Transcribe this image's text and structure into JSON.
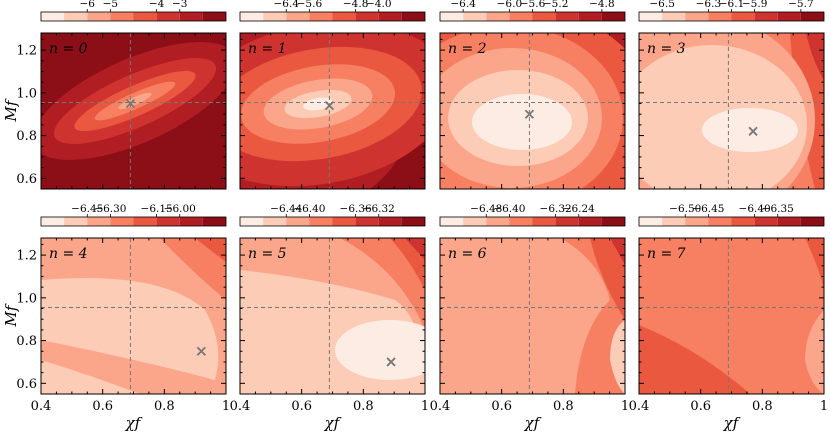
{
  "figure": {
    "xlabel": "χf",
    "ylabel": "Mf"
  },
  "chart_data": [
    {
      "type": "heatmap",
      "label": "n = 0",
      "xlim": [
        0.4,
        1.0
      ],
      "ylim": [
        0.55,
        1.28
      ],
      "xticks": [
        "0.4",
        "0.6",
        "0.8",
        "1"
      ],
      "yticks": [
        "0.6",
        "0.8",
        "1.0",
        "1.2"
      ],
      "crosshair": [
        0.69,
        0.955
      ],
      "marker": [
        0.69,
        0.95
      ],
      "colorbar_ticks": [
        "−6",
        "−5",
        "−4",
        "−3"
      ],
      "colorbar_colors": [
        "#fdece4",
        "#fcccb6",
        "#fba68a",
        "#f77f62",
        "#ea5840",
        "#cf3330",
        "#b01d22",
        "#8c0e17"
      ]
    },
    {
      "type": "heatmap",
      "label": "n = 1",
      "xlim": [
        0.4,
        1.0
      ],
      "ylim": [
        0.55,
        1.28
      ],
      "crosshair": [
        0.69,
        0.955
      ],
      "marker": [
        0.69,
        0.94
      ],
      "colorbar_ticks": [
        "−6.4",
        "−5.6",
        "−4.8",
        "−4.0"
      ],
      "colorbar_colors": [
        "#fdece4",
        "#fcccb6",
        "#fba68a",
        "#f77f62",
        "#ea5840",
        "#cf3330",
        "#b01d22",
        "#8c0e17"
      ]
    },
    {
      "type": "heatmap",
      "label": "n = 2",
      "xlim": [
        0.4,
        1.0
      ],
      "ylim": [
        0.55,
        1.28
      ],
      "crosshair": [
        0.69,
        0.955
      ],
      "marker": [
        0.69,
        0.9
      ],
      "colorbar_ticks": [
        "−6.4",
        "−6.0",
        "−5.6",
        "−5.2",
        "−4.8"
      ],
      "colorbar_colors": [
        "#fdece4",
        "#fcccb6",
        "#fba68a",
        "#f77f62",
        "#ea5840",
        "#cf3330",
        "#b01d22",
        "#8c0e17"
      ]
    },
    {
      "type": "heatmap",
      "label": "n = 3",
      "xlim": [
        0.4,
        1.0
      ],
      "ylim": [
        0.55,
        1.28
      ],
      "crosshair": [
        0.69,
        0.955
      ],
      "marker": [
        0.77,
        0.82
      ],
      "colorbar_ticks": [
        "−6.5",
        "−6.3",
        "−6.1",
        "−5.9",
        "−5.7"
      ],
      "colorbar_colors": [
        "#fdece4",
        "#fcccb6",
        "#fba68a",
        "#f77f62",
        "#ea5840",
        "#cf3330",
        "#b01d22",
        "#8c0e17"
      ]
    },
    {
      "type": "heatmap",
      "label": "n = 4",
      "xlim": [
        0.4,
        1.0
      ],
      "ylim": [
        0.55,
        1.28
      ],
      "crosshair": [
        0.69,
        0.955
      ],
      "marker": [
        0.92,
        0.75
      ],
      "colorbar_ticks": [
        "−6.45",
        "−6.30",
        "−6.15",
        "−6.00"
      ],
      "colorbar_colors": [
        "#fdece4",
        "#fcccb6",
        "#fba68a",
        "#f77f62",
        "#ea5840",
        "#cf3330",
        "#b01d22",
        "#8c0e17"
      ]
    },
    {
      "type": "heatmap",
      "label": "n = 5",
      "xlim": [
        0.4,
        1.0
      ],
      "ylim": [
        0.55,
        1.28
      ],
      "crosshair": [
        0.69,
        0.955
      ],
      "marker": [
        0.89,
        0.7
      ],
      "colorbar_ticks": [
        "−6.44",
        "−6.40",
        "−6.36",
        "−6.32"
      ],
      "colorbar_colors": [
        "#fdece4",
        "#fcccb6",
        "#fba68a",
        "#f77f62",
        "#ea5840",
        "#cf3330",
        "#b01d22",
        "#8c0e17"
      ]
    },
    {
      "type": "heatmap",
      "label": "n = 6",
      "xlim": [
        0.4,
        1.0
      ],
      "ylim": [
        0.55,
        1.28
      ],
      "crosshair": [
        0.69,
        0.955
      ],
      "marker": null,
      "colorbar_ticks": [
        "−6.48",
        "−6.40",
        "−6.32",
        "−6.24"
      ],
      "colorbar_colors": [
        "#fdece4",
        "#fcccb6",
        "#fba68a",
        "#f77f62",
        "#ea5840",
        "#cf3330",
        "#b01d22",
        "#8c0e17"
      ]
    },
    {
      "type": "heatmap",
      "label": "n = 7",
      "xlim": [
        0.4,
        1.0
      ],
      "ylim": [
        0.55,
        1.28
      ],
      "crosshair": [
        0.69,
        0.955
      ],
      "marker": null,
      "colorbar_ticks": [
        "−6.50",
        "−6.45",
        "−6.40",
        "−6.35"
      ],
      "colorbar_colors": [
        "#fdece4",
        "#fcccb6",
        "#fba68a",
        "#f77f62",
        "#ea5840",
        "#cf3330",
        "#b01d22",
        "#8c0e17"
      ]
    }
  ]
}
